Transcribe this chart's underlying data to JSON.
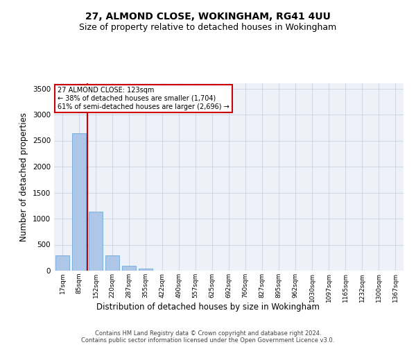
{
  "title1": "27, ALMOND CLOSE, WOKINGHAM, RG41 4UU",
  "title2": "Size of property relative to detached houses in Wokingham",
  "xlabel": "Distribution of detached houses by size in Wokingham",
  "ylabel": "Number of detached properties",
  "categories": [
    "17sqm",
    "85sqm",
    "152sqm",
    "220sqm",
    "287sqm",
    "355sqm",
    "422sqm",
    "490sqm",
    "557sqm",
    "625sqm",
    "692sqm",
    "760sqm",
    "827sqm",
    "895sqm",
    "962sqm",
    "1030sqm",
    "1097sqm",
    "1165sqm",
    "1232sqm",
    "1300sqm",
    "1367sqm"
  ],
  "values": [
    290,
    2640,
    1140,
    290,
    90,
    40,
    0,
    0,
    0,
    0,
    0,
    0,
    0,
    0,
    0,
    0,
    0,
    0,
    0,
    0,
    0
  ],
  "bar_color": "#aec6e8",
  "bar_edge_color": "#5a9fd4",
  "vline_x": 1.5,
  "vline_color": "#cc0000",
  "annotation_text": "27 ALMOND CLOSE: 123sqm\n← 38% of detached houses are smaller (1,704)\n61% of semi-detached houses are larger (2,696) →",
  "annotation_box_color": "#ffffff",
  "annotation_box_edge": "#cc0000",
  "ylim": [
    0,
    3600
  ],
  "yticks": [
    0,
    500,
    1000,
    1500,
    2000,
    2500,
    3000,
    3500
  ],
  "grid_color": "#d0d8e8",
  "background_color": "#eef2f8",
  "footer_text": "Contains HM Land Registry data © Crown copyright and database right 2024.\nContains public sector information licensed under the Open Government Licence v3.0.",
  "title1_fontsize": 10,
  "title2_fontsize": 9,
  "xlabel_fontsize": 8.5,
  "ylabel_fontsize": 8.5,
  "footer_fontsize": 6.0
}
